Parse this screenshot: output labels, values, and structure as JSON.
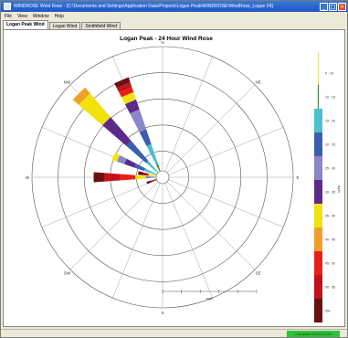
{
  "window": {
    "title": "WINDROSE Wind Rose - [C:\\Documents and Settings\\Application Data\\Projects\\Logan Peak\\WINDROSE\\WindRose_Logan 24]",
    "minimize_glyph": "_",
    "maximize_glyph": "□",
    "close_glyph": "×"
  },
  "menu": [
    "File",
    "View",
    "Window",
    "Help"
  ],
  "tabs": [
    {
      "label": "Logan Peak Wind",
      "active": true
    },
    {
      "label": "Logan Wind",
      "active": false
    },
    {
      "label": "Smithfield Wind",
      "active": false
    }
  ],
  "chart_data": {
    "type": "windrose",
    "title": "Logan Peak - 24 Hour Wind Rose",
    "radial_axis_label": "mph",
    "legend_label": "mph",
    "speed_bins": [
      {
        "label": "0 - 10",
        "color": "#e8e44a"
      },
      {
        "label": "10 - 15",
        "color": "#2f8f3a"
      },
      {
        "label": "15 - 20",
        "color": "#4cc0cc"
      },
      {
        "label": "20 - 25",
        "color": "#3b5fb0"
      },
      {
        "label": "25 - 30",
        "color": "#8a86c6"
      },
      {
        "label": "30 - 35",
        "color": "#5b2a8a"
      },
      {
        "label": "35 - 40",
        "color": "#f2e20a"
      },
      {
        "label": "40 - 45",
        "color": "#f0a02a"
      },
      {
        "label": "45 - 50",
        "color": "#e8201a"
      },
      {
        "label": "50 - 55",
        "color": "#c0141a"
      },
      {
        "label": "55+",
        "color": "#6a1010"
      }
    ],
    "direction_labels": [
      "N",
      "NE",
      "E",
      "SE",
      "S",
      "SW",
      "W",
      "NW"
    ],
    "rings": 5,
    "max_frequency": 50,
    "spokes": [
      {
        "direction_deg": 270,
        "segments": [
          {
            "bin": 2,
            "value": 2
          },
          {
            "bin": 4,
            "value": 2
          },
          {
            "bin": 6,
            "value": 4
          },
          {
            "bin": 8,
            "value": 6
          },
          {
            "bin": 9,
            "value": 6
          },
          {
            "bin": 10,
            "value": 4
          }
        ]
      },
      {
        "direction_deg": 280,
        "segments": [
          {
            "bin": 6,
            "value": 3
          },
          {
            "bin": 9,
            "value": 2
          },
          {
            "bin": 10,
            "value": 2
          }
        ]
      },
      {
        "direction_deg": 293,
        "segments": [
          {
            "bin": 2,
            "value": 5
          },
          {
            "bin": 3,
            "value": 4
          },
          {
            "bin": 5,
            "value": 4
          },
          {
            "bin": 4,
            "value": 3
          },
          {
            "bin": 6,
            "value": 2
          }
        ]
      },
      {
        "direction_deg": 315,
        "segments": [
          {
            "bin": 2,
            "value": 6
          },
          {
            "bin": 3,
            "value": 10
          },
          {
            "bin": 5,
            "value": 12
          },
          {
            "bin": 6,
            "value": 12
          },
          {
            "bin": 7,
            "value": 3
          }
        ]
      },
      {
        "direction_deg": 337,
        "segments": [
          {
            "bin": 1,
            "value": 3
          },
          {
            "bin": 2,
            "value": 8
          },
          {
            "bin": 3,
            "value": 6
          },
          {
            "bin": 4,
            "value": 8
          },
          {
            "bin": 5,
            "value": 4
          },
          {
            "bin": 6,
            "value": 3
          },
          {
            "bin": 8,
            "value": 2
          },
          {
            "bin": 9,
            "value": 2
          },
          {
            "bin": 10,
            "value": 2
          }
        ]
      },
      {
        "direction_deg": 250,
        "segments": [
          {
            "bin": 9,
            "value": 2
          },
          {
            "bin": 10,
            "value": 2
          }
        ]
      }
    ]
  },
  "status": {
    "right_text": "Complete  01/01  12:00"
  }
}
